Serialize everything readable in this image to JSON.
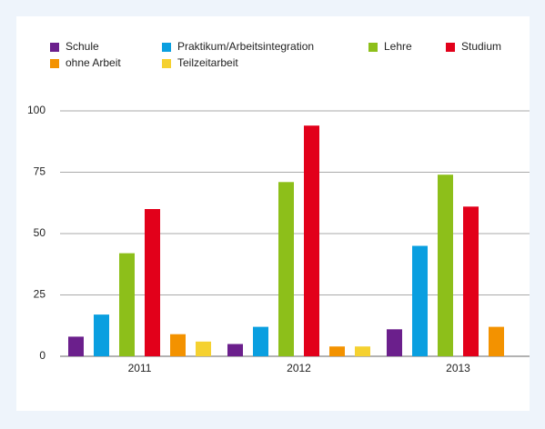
{
  "chart_data": {
    "type": "bar",
    "categories": [
      "2011",
      "2012",
      "2013"
    ],
    "series": [
      {
        "name": "Schule",
        "color": "#6b1f8c",
        "values": [
          8,
          5,
          11
        ]
      },
      {
        "name": "Praktikum/Arbeitsintegration",
        "color": "#0a9fe0",
        "values": [
          17,
          12,
          45
        ]
      },
      {
        "name": "Lehre",
        "color": "#8dbf1a",
        "values": [
          42,
          71,
          74
        ]
      },
      {
        "name": "Studium",
        "color": "#e2001a",
        "values": [
          60,
          94,
          61
        ]
      },
      {
        "name": "ohne  Arbeit",
        "color": "#f39200",
        "values": [
          9,
          4,
          12
        ]
      },
      {
        "name": "Teilzeitarbeit",
        "color": "#f5d130",
        "values": [
          6,
          4,
          null
        ]
      }
    ],
    "ylim": [
      0,
      100
    ],
    "yticks": [
      0,
      25,
      50,
      75,
      100
    ],
    "grid": true
  }
}
